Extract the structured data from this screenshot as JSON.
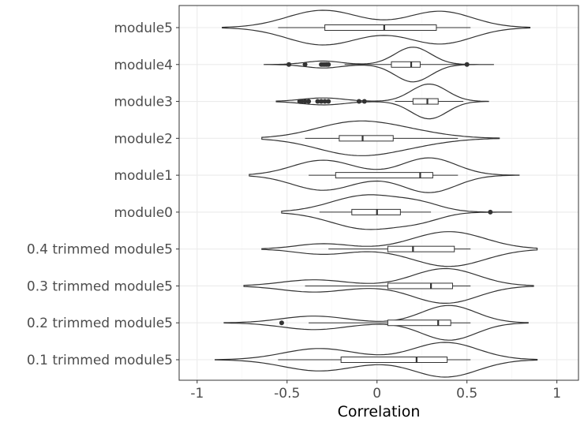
{
  "chart_data": {
    "type": "violin",
    "title": "",
    "xlabel": "Correlation",
    "ylabel": "",
    "xlim": [
      -1.1,
      1.12
    ],
    "xticks": [
      -1,
      -0.5,
      0,
      0.5,
      1
    ],
    "xtick_labels": [
      "-1",
      "-0.5",
      "0",
      "0.5",
      "1"
    ],
    "grid": true,
    "orientation": "horizontal",
    "categories": [
      "module5",
      "module4",
      "module3",
      "module2",
      "module1",
      "module0",
      "0.4 trimmed module5",
      "0.3 trimmed module5",
      "0.2 trimmed module5",
      "0.1 trimmed module5"
    ],
    "series": [
      {
        "label": "module5",
        "min": -0.86,
        "max": 0.85,
        "whisker_low": -0.55,
        "q1": -0.29,
        "median": 0.04,
        "q3": 0.33,
        "whisker_high": 0.52,
        "outliers": [],
        "density": {
          "peaks": [
            [
              -0.3,
              0.2,
              0.85
            ],
            [
              0.35,
              0.18,
              0.8
            ]
          ]
        }
      },
      {
        "label": "module4",
        "min": -0.63,
        "max": 0.65,
        "whisker_low": -0.18,
        "q1": 0.08,
        "median": 0.19,
        "q3": 0.24,
        "whisker_high": 0.49,
        "outliers": [
          -0.49,
          -0.4,
          -0.31,
          -0.3,
          -0.29,
          -0.28,
          -0.27,
          0.5
        ],
        "density": {
          "peaks": [
            [
              -0.3,
              0.1,
              0.2
            ],
            [
              0.2,
              0.1,
              1.0
            ]
          ]
        }
      },
      {
        "label": "module3",
        "min": -0.56,
        "max": 0.62,
        "whisker_low": 0.1,
        "q1": 0.2,
        "median": 0.28,
        "q3": 0.34,
        "whisker_high": 0.48,
        "outliers": [
          -0.43,
          -0.42,
          -0.4,
          -0.38,
          -0.33,
          -0.31,
          -0.29,
          -0.27,
          -0.1,
          -0.07
        ],
        "density": {
          "peaks": [
            [
              -0.3,
              0.12,
              0.2
            ],
            [
              0.29,
              0.1,
              1.0
            ]
          ]
        }
      },
      {
        "label": "module2",
        "min": -0.64,
        "max": 0.68,
        "whisker_low": -0.4,
        "q1": -0.21,
        "median": -0.08,
        "q3": 0.09,
        "whisker_high": 0.45,
        "outliers": [],
        "density": {
          "peaks": [
            [
              -0.12,
              0.22,
              0.9
            ],
            [
              0.2,
              0.2,
              0.25
            ]
          ]
        }
      },
      {
        "label": "module1",
        "min": -0.71,
        "max": 0.79,
        "whisker_low": -0.38,
        "q1": -0.23,
        "median": 0.24,
        "q3": 0.31,
        "whisker_high": 0.45,
        "outliers": [],
        "density": {
          "peaks": [
            [
              -0.3,
              0.17,
              0.65
            ],
            [
              0.29,
              0.15,
              0.75
            ]
          ]
        }
      },
      {
        "label": "module0",
        "min": -0.53,
        "max": 0.75,
        "whisker_low": -0.32,
        "q1": -0.14,
        "median": 0.0,
        "q3": 0.13,
        "whisker_high": 0.3,
        "outliers": [
          0.63
        ],
        "density": {
          "peaks": [
            [
              -0.05,
              0.2,
              0.9
            ],
            [
              0.25,
              0.12,
              0.3
            ]
          ]
        }
      },
      {
        "label": "0.4 trimmed module5",
        "min": -0.64,
        "max": 0.89,
        "whisker_low": -0.27,
        "q1": 0.06,
        "median": 0.2,
        "q3": 0.43,
        "whisker_high": 0.52,
        "outliers": [],
        "density": {
          "peaks": [
            [
              -0.3,
              0.15,
              0.25
            ],
            [
              0.4,
              0.2,
              0.82
            ]
          ]
        }
      },
      {
        "label": "0.3 trimmed module5",
        "min": -0.74,
        "max": 0.87,
        "whisker_low": -0.4,
        "q1": 0.06,
        "median": 0.3,
        "q3": 0.42,
        "whisker_high": 0.52,
        "outliers": [],
        "density": {
          "peaks": [
            [
              -0.35,
              0.18,
              0.3
            ],
            [
              0.38,
              0.18,
              0.85
            ]
          ]
        }
      },
      {
        "label": "0.2 trimmed module5",
        "min": -0.85,
        "max": 0.84,
        "whisker_low": -0.38,
        "q1": 0.06,
        "median": 0.34,
        "q3": 0.41,
        "whisker_high": 0.52,
        "outliers": [
          -0.53
        ],
        "density": {
          "peaks": [
            [
              -0.35,
              0.18,
              0.35
            ],
            [
              0.4,
              0.15,
              0.9
            ]
          ]
        }
      },
      {
        "label": "0.1 trimmed module5",
        "min": -0.9,
        "max": 0.89,
        "whisker_low": -0.55,
        "q1": -0.2,
        "median": 0.22,
        "q3": 0.39,
        "whisker_high": 0.52,
        "outliers": [],
        "density": {
          "peaks": [
            [
              -0.32,
              0.2,
              0.55
            ],
            [
              0.38,
              0.18,
              0.85
            ]
          ]
        }
      }
    ]
  }
}
